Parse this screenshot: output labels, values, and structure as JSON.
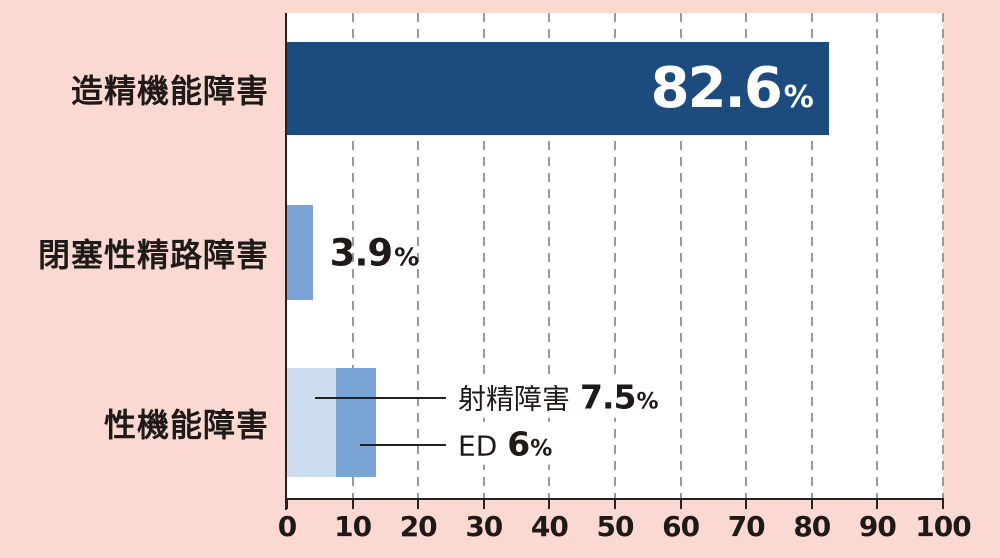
{
  "colors": {
    "background": "#f9d9d2",
    "plot_background": "#ffffff",
    "bar_dark_navy": "#1c4c7e",
    "bar_medium_blue": "#7aa4d3",
    "bar_light_blue": "#cedcf0",
    "gridline_gray": "#9b9b9b",
    "axis_black": "#222222",
    "text_black": "#1f1a17",
    "value_text_white": "#ffffff"
  },
  "chart_data": {
    "type": "bar",
    "orientation": "horizontal",
    "title": "",
    "xlabel": "",
    "ylabel": "",
    "xlim": [
      0,
      100
    ],
    "x_ticks": [
      0,
      10,
      20,
      30,
      40,
      50,
      60,
      70,
      80,
      90,
      100
    ],
    "grid": "dashed-vertical",
    "legend": "none",
    "categories": [
      "造精機能障害",
      "閉塞性精路障害",
      "性機能障害"
    ],
    "rows": [
      {
        "category": "造精機能障害",
        "segments": [
          {
            "label": "造精機能障害",
            "value": 82.6,
            "color_key": "bar_dark_navy"
          }
        ],
        "value_label": {
          "number": "82.6",
          "unit": "%",
          "placement": "inside-bar-right",
          "color_key": "value_text_white"
        }
      },
      {
        "category": "閉塞性精路障害",
        "segments": [
          {
            "label": "閉塞性精路障害",
            "value": 3.9,
            "color_key": "bar_medium_blue"
          }
        ],
        "value_label": {
          "number": "3.9",
          "unit": "%",
          "placement": "right-of-bar",
          "color_key": "text_black"
        }
      },
      {
        "category": "性機能障害",
        "segments": [
          {
            "label": "射精障害",
            "value": 7.5,
            "color_key": "bar_light_blue"
          },
          {
            "label": "ED",
            "value": 6,
            "color_key": "bar_medium_blue"
          }
        ],
        "callouts": [
          {
            "name": "射精障害",
            "number": "7.5",
            "unit": "%"
          },
          {
            "name": "ED",
            "number": "6",
            "unit": "%"
          }
        ]
      }
    ]
  }
}
